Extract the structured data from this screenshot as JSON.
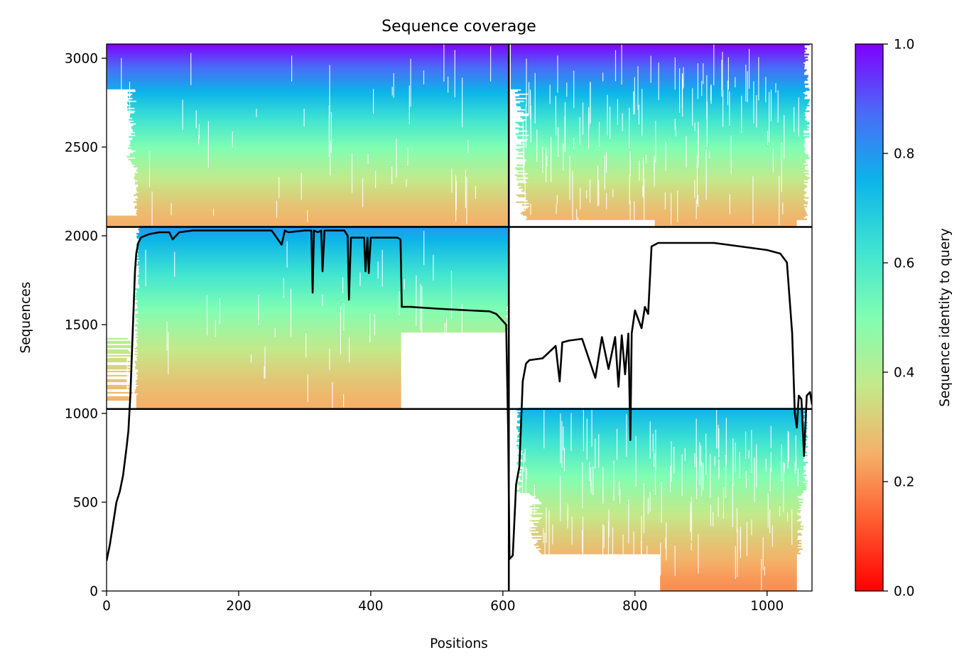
{
  "chart_data": {
    "type": "heatmap",
    "title": "Sequence coverage",
    "xlabel": "Positions",
    "ylabel": "Sequences",
    "xlim": [
      0,
      1068
    ],
    "ylim": [
      0,
      3080
    ],
    "xticks": [
      0,
      200,
      400,
      600,
      800,
      1000
    ],
    "yticks": [
      0,
      500,
      1000,
      1500,
      2000,
      2500,
      3000
    ],
    "colormap": "rainbow",
    "colorbar": {
      "label": "Sequence identity to query",
      "range": [
        0,
        1
      ],
      "ticks": [
        "0.0",
        "0.2",
        "0.4",
        "0.6",
        "0.8",
        "1.0"
      ]
    },
    "grid": false,
    "block_boundaries": {
      "vertical_x": [
        609
      ],
      "horizontal_y": [
        1025,
        2050
      ]
    },
    "blocks": [
      {
        "x": [
          0,
          609
        ],
        "y": [
          2050,
          3080
        ],
        "identity_range": [
          0.25,
          1.0
        ],
        "coverage": "mostly full, start ~45"
      },
      {
        "x": [
          609,
          1068
        ],
        "y": [
          2050,
          3080
        ],
        "identity_range": [
          0.25,
          1.0
        ],
        "coverage": "gapped 620-1060"
      },
      {
        "x": [
          0,
          609
        ],
        "y": [
          1025,
          2050
        ],
        "identity_range": [
          0.25,
          0.8
        ],
        "coverage": "45-609, lower rows end ~446"
      },
      {
        "x": [
          609,
          1068
        ],
        "y": [
          0,
          1025
        ],
        "identity_range": [
          0.2,
          0.75
        ],
        "coverage": "620-1065, lower rows 838-1045"
      }
    ],
    "coverage_line": {
      "name": "coverage",
      "color": "#000000",
      "x": [
        0,
        5,
        10,
        15,
        20,
        25,
        30,
        33,
        36,
        40,
        43,
        45,
        48,
        52,
        58,
        65,
        80,
        95,
        100,
        110,
        130,
        150,
        200,
        250,
        265,
        270,
        275,
        300,
        310,
        312,
        314,
        320,
        325,
        327,
        330,
        360,
        365,
        367,
        370,
        390,
        392,
        395,
        397,
        400,
        440,
        445,
        447,
        460,
        500,
        550,
        580,
        590,
        600,
        605,
        608,
        610,
        615,
        620,
        625,
        630,
        635,
        640,
        660,
        680,
        686,
        690,
        700,
        720,
        740,
        750,
        760,
        770,
        775,
        780,
        785,
        790,
        793,
        795,
        800,
        810,
        815,
        820,
        825,
        830,
        835,
        840,
        850,
        870,
        900,
        920,
        940,
        960,
        980,
        1000,
        1020,
        1030,
        1038,
        1042,
        1045,
        1048,
        1052,
        1056,
        1060,
        1065,
        1068
      ],
      "y": [
        170,
        260,
        380,
        500,
        560,
        650,
        800,
        900,
        1100,
        1500,
        1800,
        1900,
        1960,
        1990,
        2000,
        2010,
        2020,
        2020,
        1980,
        2020,
        2030,
        2030,
        2030,
        2030,
        1950,
        2030,
        2020,
        2030,
        2030,
        1680,
        2030,
        2020,
        2030,
        1800,
        2030,
        2030,
        2000,
        1640,
        1990,
        1990,
        1800,
        1990,
        1790,
        1990,
        1990,
        1980,
        1600,
        1600,
        1590,
        1580,
        1575,
        1560,
        1520,
        1500,
        900,
        180,
        200,
        600,
        700,
        1180,
        1280,
        1300,
        1310,
        1380,
        1180,
        1400,
        1410,
        1420,
        1200,
        1430,
        1250,
        1430,
        1150,
        1440,
        1220,
        1450,
        850,
        1450,
        1580,
        1480,
        1600,
        1560,
        1940,
        1950,
        1960,
        1960,
        1960,
        1960,
        1960,
        1960,
        1950,
        1940,
        1930,
        1920,
        1900,
        1850,
        1450,
        1000,
        920,
        1100,
        1080,
        760,
        1100,
        1120,
        1050
      ]
    }
  }
}
